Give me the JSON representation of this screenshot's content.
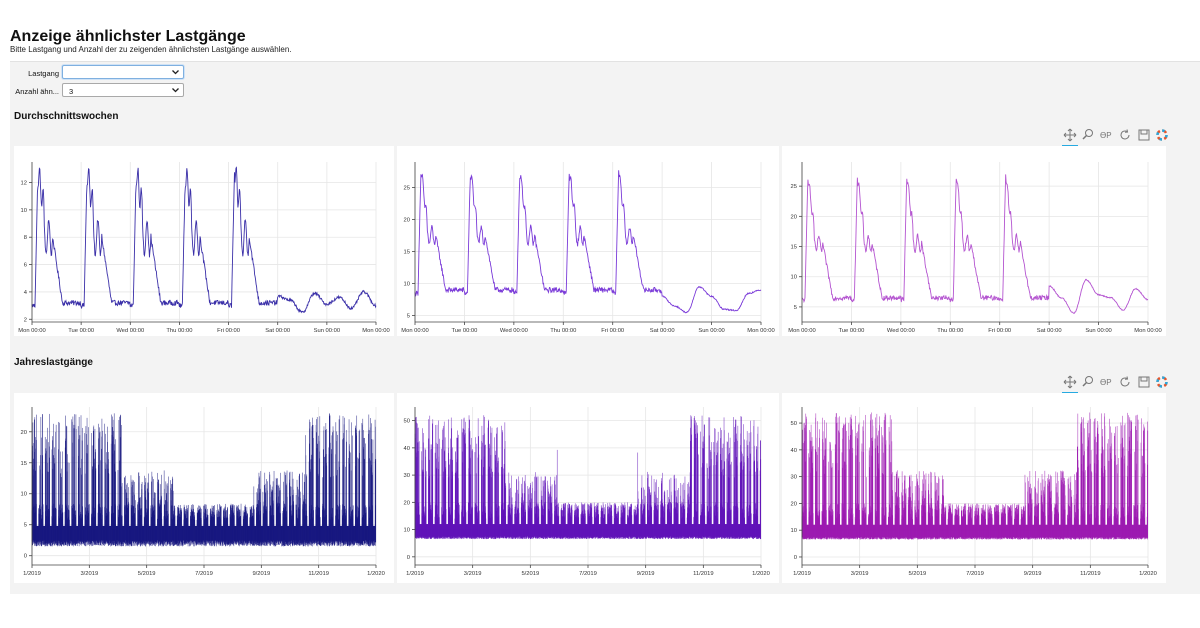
{
  "header": {
    "title": "Anzeige ähnlichster Lastgänge",
    "subtitle": "Bitte Lastgang und Anzahl der zu zeigenden ähnlichsten Lastgänge auswählen."
  },
  "form": {
    "lastgang_label": "Lastgang",
    "lastgang_value": "",
    "anzahl_label": "Anzahl ähn...",
    "anzahl_value": "3"
  },
  "sections": {
    "weeks_title": "Durchschnittswochen",
    "years_title": "Jahreslastgänge"
  },
  "toolbar": {
    "tools": [
      "pan-icon",
      "box-zoom-icon",
      "wheel-zoom-icon",
      "reset-icon",
      "save-icon",
      "bokeh-logo-icon"
    ],
    "wheel_zoom_text": "ƟP",
    "active_tool": "pan-icon"
  },
  "colors": {
    "series_1": "#1f1a8c",
    "series_2": "#6a1ac4",
    "series_3": "#a020b4",
    "accent": "#26aae1"
  },
  "chart_data": [
    {
      "type": "line",
      "x_ticks": [
        "Mon 00:00",
        "Tue 00:00",
        "Wed 00:00",
        "Thu 00:00",
        "Fri 00:00",
        "Sat 00:00",
        "Sun 00:00",
        "Mon 00:00"
      ],
      "y_ticks": [
        2,
        4,
        6,
        8,
        10,
        12
      ],
      "ylim": [
        1.8,
        13.5
      ],
      "grid": true,
      "color": "#3a2fa8",
      "weekday": {
        "base": 3.0,
        "peak": 12.8,
        "mid": 8.0,
        "end": 3.2
      },
      "weekend": {
        "base": 2.9,
        "levels": [
          3.7,
          3.4,
          2.5,
          3.9,
          3.1,
          3.6,
          2.8,
          4.0,
          3.0
        ]
      }
    },
    {
      "type": "line",
      "x_ticks": [
        "Mon 00:00",
        "Tue 00:00",
        "Wed 00:00",
        "Thu 00:00",
        "Fri 00:00",
        "Sat 00:00",
        "Sun 00:00",
        "Mon 00:00"
      ],
      "y_ticks": [
        5,
        10,
        15,
        20,
        25
      ],
      "ylim": [
        4.0,
        29.0
      ],
      "grid": true,
      "color": "#7a3ad8",
      "weekday": {
        "base": 8.5,
        "peak": 27.8,
        "mid": 17.5,
        "end": 9.0
      },
      "weekend": {
        "base": 9.0,
        "levels": [
          8.0,
          6.5,
          5.5,
          9.5,
          8.0,
          6.0,
          5.8,
          8.5,
          9.0
        ]
      }
    },
    {
      "type": "line",
      "x_ticks": [
        "Mon 00:00",
        "Tue 00:00",
        "Wed 00:00",
        "Thu 00:00",
        "Fri 00:00",
        "Sat 00:00",
        "Sun 00:00",
        "Mon 00:00"
      ],
      "y_ticks": [
        5,
        10,
        15,
        20,
        25
      ],
      "ylim": [
        2.5,
        29.0
      ],
      "grid": true,
      "color": "#b454d0",
      "weekday": {
        "base": 6.2,
        "peak": 27.0,
        "mid": 15.5,
        "end": 6.5
      },
      "weekend": {
        "base": 6.5,
        "levels": [
          8.5,
          6.5,
          4.0,
          9.5,
          7.0,
          6.5,
          4.5,
          8.0,
          6.2
        ]
      }
    },
    {
      "type": "line",
      "x_ticks": [
        "1/2019",
        "3/2019",
        "5/2019",
        "7/2019",
        "9/2019",
        "11/2019",
        "1/2020"
      ],
      "y_ticks": [
        0,
        5,
        10,
        15,
        20
      ],
      "ylim": [
        -1.5,
        24.0
      ],
      "grid": true,
      "color": "#14147e",
      "profile": {
        "base": 3.0,
        "band": 4.5,
        "spike_max": 23.0,
        "summer_spike": 6.5
      }
    },
    {
      "type": "line",
      "x_ticks": [
        "1/2019",
        "3/2019",
        "5/2019",
        "7/2019",
        "9/2019",
        "11/2019",
        "1/2020"
      ],
      "y_ticks": [
        0,
        10,
        20,
        30,
        40,
        50
      ],
      "ylim": [
        -3.0,
        55.0
      ],
      "grid": true,
      "color": "#5e10b8",
      "profile": {
        "base": 8.0,
        "band": 10.0,
        "spike_max": 52.0,
        "summer_spike": 15.0
      }
    },
    {
      "type": "line",
      "x_ticks": [
        "1/2019",
        "3/2019",
        "5/2019",
        "7/2019",
        "9/2019",
        "11/2019",
        "1/2020"
      ],
      "y_ticks": [
        0,
        10,
        20,
        30,
        40,
        50
      ],
      "ylim": [
        -3.0,
        56.0
      ],
      "grid": true,
      "color": "#9b16b0",
      "profile": {
        "base": 8.0,
        "band": 10.0,
        "spike_max": 54.0,
        "summer_spike": 15.0
      }
    }
  ]
}
